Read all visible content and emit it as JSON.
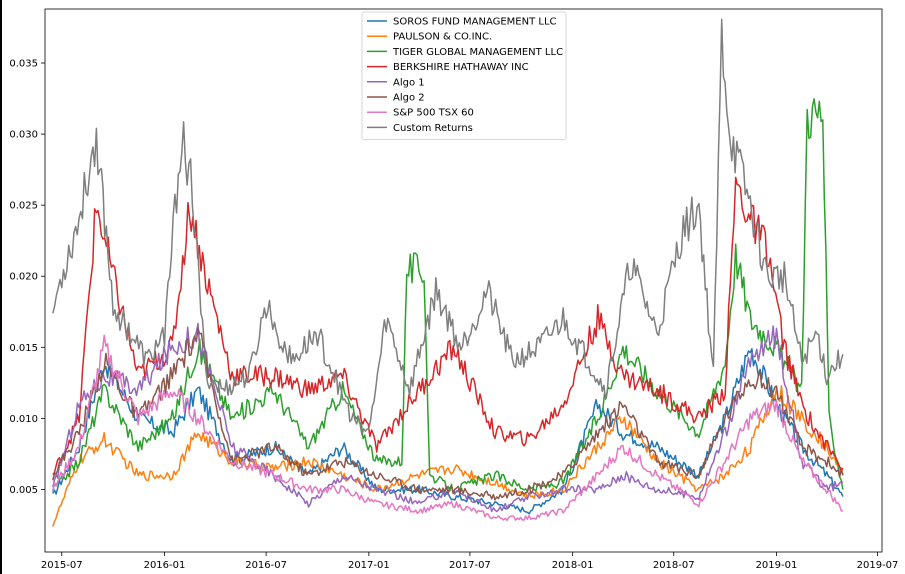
{
  "chart_data": {
    "type": "line",
    "title": "",
    "xlabel": "",
    "ylabel": "",
    "xlim": [
      "2015-06-01",
      "2019-07-09"
    ],
    "ylim": [
      0.0006,
      0.0388
    ],
    "x_tick_labels": [
      "2015-07",
      "2016-01",
      "2016-07",
      "2017-01",
      "2017-07",
      "2018-01",
      "2018-07",
      "2019-01",
      "2019-07"
    ],
    "y_tick_labels": [
      "0.005",
      "0.010",
      "0.015",
      "0.020",
      "0.025",
      "0.030",
      "0.035"
    ],
    "y_ticks": [
      0.005,
      0.01,
      0.015,
      0.02,
      0.025,
      0.03,
      0.035
    ],
    "grid": false,
    "legend_position": "top-center",
    "series": [
      {
        "name": "SOROS FUND MANAGEMENT LLC",
        "color": "#1f77b4",
        "x": [
          "2015-06-15",
          "2015-08-01",
          "2015-09-15",
          "2015-11-15",
          "2016-01-15",
          "2016-03-01",
          "2016-05-01",
          "2016-07-15",
          "2016-09-15",
          "2016-11-15",
          "2017-01-15",
          "2017-04-01",
          "2017-06-01",
          "2017-08-15",
          "2017-10-15",
          "2017-12-15",
          "2018-02-15",
          "2018-04-01",
          "2018-06-01",
          "2018-08-15",
          "2018-10-01",
          "2018-11-15",
          "2019-01-01",
          "2019-02-15",
          "2019-04-01",
          "2019-04-30"
        ],
        "values": [
          0.0045,
          0.008,
          0.014,
          0.01,
          0.009,
          0.012,
          0.007,
          0.008,
          0.006,
          0.008,
          0.005,
          0.005,
          0.0045,
          0.004,
          0.0035,
          0.005,
          0.011,
          0.009,
          0.008,
          0.006,
          0.01,
          0.015,
          0.011,
          0.008,
          0.006,
          0.0045
        ]
      },
      {
        "name": "PAULSON & CO.INC.",
        "color": "#ff7f0e",
        "x": [
          "2015-06-15",
          "2015-08-01",
          "2015-09-15",
          "2015-11-15",
          "2016-01-15",
          "2016-03-01",
          "2016-05-01",
          "2016-07-15",
          "2016-09-15",
          "2016-11-15",
          "2017-01-15",
          "2017-04-01",
          "2017-06-01",
          "2017-08-15",
          "2017-10-15",
          "2017-12-15",
          "2018-02-15",
          "2018-04-01",
          "2018-06-01",
          "2018-08-15",
          "2018-10-01",
          "2018-11-15",
          "2019-01-01",
          "2019-02-15",
          "2019-04-01",
          "2019-04-30"
        ],
        "values": [
          0.0025,
          0.007,
          0.0085,
          0.006,
          0.006,
          0.009,
          0.007,
          0.0065,
          0.007,
          0.006,
          0.005,
          0.006,
          0.0065,
          0.0055,
          0.0045,
          0.005,
          0.008,
          0.01,
          0.007,
          0.005,
          0.006,
          0.008,
          0.012,
          0.01,
          0.008,
          0.006
        ]
      },
      {
        "name": "TIGER GLOBAL MANAGEMENT LLC",
        "color": "#2ca02c",
        "x": [
          "2015-06-15",
          "2015-08-01",
          "2015-09-15",
          "2015-11-15",
          "2016-01-15",
          "2016-03-01",
          "2016-05-01",
          "2016-07-15",
          "2016-09-15",
          "2016-11-15",
          "2017-01-15",
          "2017-03-01",
          "2017-03-10",
          "2017-04-10",
          "2017-04-20",
          "2017-06-01",
          "2017-08-15",
          "2017-10-15",
          "2017-12-15",
          "2018-02-15",
          "2018-04-01",
          "2018-06-01",
          "2018-08-15",
          "2018-10-01",
          "2018-10-20",
          "2018-11-15",
          "2019-01-01",
          "2019-02-15",
          "2019-02-25",
          "2019-03-25",
          "2019-04-05",
          "2019-04-30"
        ],
        "values": [
          0.005,
          0.007,
          0.012,
          0.008,
          0.01,
          0.015,
          0.01,
          0.012,
          0.008,
          0.012,
          0.007,
          0.007,
          0.0205,
          0.0205,
          0.006,
          0.005,
          0.006,
          0.005,
          0.0055,
          0.01,
          0.015,
          0.012,
          0.009,
          0.014,
          0.0215,
          0.017,
          0.015,
          0.012,
          0.0315,
          0.0315,
          0.01,
          0.005
        ]
      },
      {
        "name": "BERKSHIRE HATHAWAY INC",
        "color": "#d62728",
        "x": [
          "2015-06-15",
          "2015-08-01",
          "2015-09-01",
          "2015-10-01",
          "2015-11-15",
          "2016-01-15",
          "2016-02-15",
          "2016-03-15",
          "2016-05-01",
          "2016-07-15",
          "2016-09-15",
          "2016-11-15",
          "2017-01-15",
          "2017-04-01",
          "2017-06-01",
          "2017-08-15",
          "2017-10-15",
          "2017-12-15",
          "2018-02-15",
          "2018-04-01",
          "2018-06-01",
          "2018-08-15",
          "2018-10-01",
          "2018-10-20",
          "2018-11-15",
          "2018-12-15",
          "2019-01-15",
          "2019-02-15",
          "2019-03-15",
          "2019-04-30"
        ],
        "values": [
          0.006,
          0.01,
          0.025,
          0.02,
          0.013,
          0.015,
          0.025,
          0.02,
          0.013,
          0.013,
          0.012,
          0.013,
          0.008,
          0.012,
          0.015,
          0.009,
          0.0085,
          0.011,
          0.017,
          0.013,
          0.012,
          0.01,
          0.012,
          0.0265,
          0.024,
          0.022,
          0.015,
          0.011,
          0.009,
          0.0065
        ]
      },
      {
        "name": "Algo 1",
        "color": "#9467bd",
        "x": [
          "2015-06-15",
          "2015-08-01",
          "2015-09-15",
          "2015-11-15",
          "2016-01-15",
          "2016-03-01",
          "2016-05-01",
          "2016-07-15",
          "2016-09-15",
          "2016-11-15",
          "2017-01-15",
          "2017-04-01",
          "2017-06-01",
          "2017-08-15",
          "2017-10-15",
          "2017-12-15",
          "2018-02-15",
          "2018-04-01",
          "2018-06-01",
          "2018-08-15",
          "2018-10-01",
          "2018-11-15",
          "2019-01-01",
          "2019-02-15",
          "2019-04-01",
          "2019-04-30"
        ],
        "values": [
          0.005,
          0.011,
          0.013,
          0.012,
          0.015,
          0.016,
          0.008,
          0.006,
          0.004,
          0.006,
          0.005,
          0.004,
          0.005,
          0.0035,
          0.0045,
          0.005,
          0.005,
          0.006,
          0.005,
          0.0045,
          0.009,
          0.014,
          0.016,
          0.007,
          0.005,
          0.0055
        ]
      },
      {
        "name": "Algo 2",
        "color": "#8c564b",
        "x": [
          "2015-06-15",
          "2015-08-01",
          "2015-09-15",
          "2015-11-15",
          "2016-01-15",
          "2016-03-01",
          "2016-05-01",
          "2016-07-15",
          "2016-09-15",
          "2016-11-15",
          "2017-01-15",
          "2017-04-01",
          "2017-06-01",
          "2017-08-15",
          "2017-10-15",
          "2017-12-15",
          "2018-02-15",
          "2018-04-01",
          "2018-06-01",
          "2018-08-15",
          "2018-10-01",
          "2018-11-15",
          "2019-01-01",
          "2019-02-15",
          "2019-04-01",
          "2019-04-30"
        ],
        "values": [
          0.006,
          0.009,
          0.014,
          0.01,
          0.013,
          0.016,
          0.007,
          0.008,
          0.006,
          0.007,
          0.006,
          0.005,
          0.005,
          0.0045,
          0.005,
          0.006,
          0.009,
          0.011,
          0.007,
          0.006,
          0.01,
          0.013,
          0.012,
          0.008,
          0.007,
          0.006
        ]
      },
      {
        "name": "S&P 500 TSX 60",
        "color": "#e377c2",
        "x": [
          "2015-06-15",
          "2015-08-01",
          "2015-09-15",
          "2015-11-15",
          "2016-01-15",
          "2016-03-01",
          "2016-05-01",
          "2016-07-15",
          "2016-09-15",
          "2016-11-15",
          "2017-01-15",
          "2017-04-01",
          "2017-06-01",
          "2017-08-15",
          "2017-10-15",
          "2017-12-15",
          "2018-02-15",
          "2018-04-01",
          "2018-06-01",
          "2018-08-15",
          "2018-10-01",
          "2018-11-15",
          "2019-01-01",
          "2019-02-15",
          "2019-04-01",
          "2019-04-30"
        ],
        "values": [
          0.005,
          0.008,
          0.015,
          0.01,
          0.012,
          0.01,
          0.007,
          0.006,
          0.005,
          0.005,
          0.004,
          0.0035,
          0.004,
          0.003,
          0.003,
          0.0035,
          0.006,
          0.008,
          0.006,
          0.004,
          0.007,
          0.01,
          0.011,
          0.007,
          0.005,
          0.0035
        ]
      },
      {
        "name": "Custom Returns",
        "color": "#7f7f7f",
        "x": [
          "2015-06-15",
          "2015-07-01",
          "2015-08-01",
          "2015-09-01",
          "2015-10-01",
          "2015-11-01",
          "2015-12-01",
          "2016-01-01",
          "2016-02-01",
          "2016-02-20",
          "2016-03-15",
          "2016-04-15",
          "2016-06-01",
          "2016-07-01",
          "2016-08-15",
          "2016-10-01",
          "2016-12-01",
          "2017-01-01",
          "2017-02-01",
          "2017-03-15",
          "2017-05-01",
          "2017-06-15",
          "2017-08-01",
          "2017-09-15",
          "2017-11-01",
          "2017-12-15",
          "2018-01-15",
          "2018-03-01",
          "2018-04-15",
          "2018-06-01",
          "2018-07-15",
          "2018-08-15",
          "2018-09-10",
          "2018-09-25",
          "2018-10-10",
          "2018-11-15",
          "2018-12-15",
          "2019-01-15",
          "2019-02-15",
          "2019-03-15",
          "2019-04-01",
          "2019-04-30"
        ],
        "values": [
          0.0175,
          0.02,
          0.024,
          0.03,
          0.018,
          0.016,
          0.014,
          0.016,
          0.03,
          0.026,
          0.013,
          0.012,
          0.013,
          0.018,
          0.014,
          0.016,
          0.01,
          0.009,
          0.017,
          0.012,
          0.019,
          0.015,
          0.019,
          0.014,
          0.015,
          0.017,
          0.015,
          0.012,
          0.021,
          0.016,
          0.023,
          0.025,
          0.013,
          0.037,
          0.03,
          0.025,
          0.02,
          0.02,
          0.014,
          0.016,
          0.013,
          0.0145
        ]
      }
    ]
  }
}
